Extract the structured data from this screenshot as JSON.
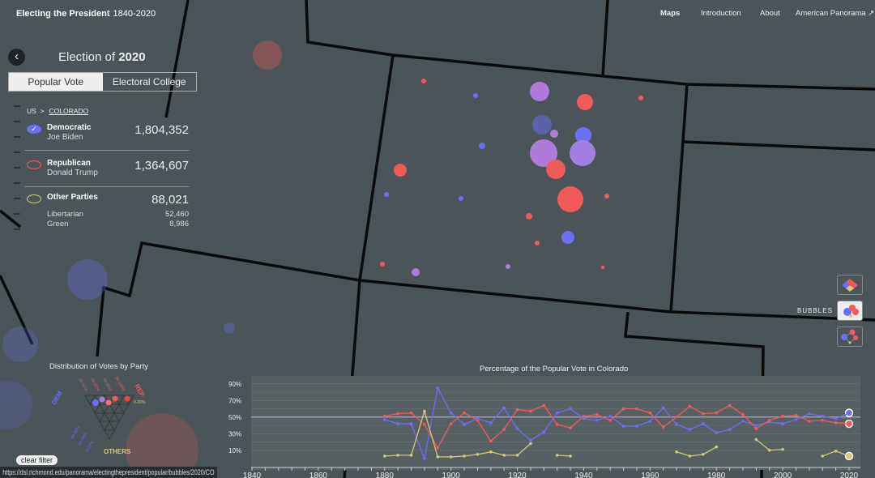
{
  "header": {
    "title": "Electing the President",
    "years": "1840-2020",
    "nav": [
      "Maps",
      "Introduction",
      "About",
      "American Panorama"
    ]
  },
  "panel": {
    "title_prefix": "Election of",
    "year": "2020",
    "tabs": [
      "Popular Vote",
      "Electoral College"
    ],
    "breadcrumb": [
      "US",
      ">",
      "COLORADO"
    ],
    "parties": [
      {
        "name": "Democratic",
        "candidate": "Joe Biden",
        "votes": "1,804,352",
        "color": "#6b6ff5"
      },
      {
        "name": "Republican",
        "candidate": "Donald Trump",
        "votes": "1,364,607",
        "color": "#f05a5a"
      },
      {
        "name": "Other Parties",
        "candidate": "",
        "votes": "88,021",
        "color": "#d6c77a"
      }
    ],
    "others": [
      {
        "name": "Libertarian",
        "votes": "52,460"
      },
      {
        "name": "Green",
        "votes": "8,986"
      }
    ]
  },
  "views": {
    "active_label": "BUBBLES"
  },
  "ternary": {
    "title": "Distribution of Votes by Party",
    "rep": "REP",
    "dem": "DEM",
    "others": "OTHERS",
    "rep_ticks": [
      "0-20%",
      "20-40%",
      "40-60%",
      "60-80%",
      "80-100%"
    ],
    "dem_ticks": [
      "80-100%",
      "60-80%",
      "40-60%",
      "20-40%",
      "0-20%"
    ],
    "oth_ticks": [
      "0-20%",
      "20-40%",
      "40-60%",
      "60-80%",
      "80-100%"
    ],
    "clear": "clear filter"
  },
  "status_url": "https://dsl.richmond.edu/panorama/electingthepresident/popular/bubbles/2020/CO",
  "chart_data": {
    "type": "line",
    "title": "Percentage of the Popular Vote in Colorado",
    "xlim": [
      1840,
      2020
    ],
    "ylim": [
      0,
      100
    ],
    "xticks": [
      1840,
      1860,
      1880,
      1900,
      1920,
      1940,
      1960,
      1980,
      2000,
      2020
    ],
    "yticks": [
      "10%",
      "30%",
      "50%",
      "70%",
      "90%"
    ],
    "x": [
      1880,
      1884,
      1888,
      1892,
      1896,
      1900,
      1904,
      1908,
      1912,
      1916,
      1920,
      1924,
      1928,
      1932,
      1936,
      1940,
      1944,
      1948,
      1952,
      1956,
      1960,
      1964,
      1968,
      1972,
      1976,
      1980,
      1984,
      1988,
      1992,
      1996,
      2000,
      2004,
      2008,
      2012,
      2016,
      2020
    ],
    "series": [
      {
        "name": "Democratic",
        "color": "#6b6ff5",
        "values": [
          47,
          42,
          42,
          0,
          85,
          55,
          41,
          48,
          43,
          61,
          36,
          22,
          32,
          55,
          60,
          48,
          46,
          51,
          39,
          39,
          45,
          61,
          41,
          35,
          42,
          31,
          35,
          45,
          40,
          44,
          42,
          47,
          54,
          51,
          48,
          55
        ]
      },
      {
        "name": "Republican",
        "color": "#f05a5a",
        "values": [
          51,
          54,
          55,
          41,
          13,
          42,
          55,
          46,
          21,
          35,
          59,
          57,
          64,
          41,
          37,
          51,
          53,
          46,
          60,
          60,
          55,
          38,
          50,
          63,
          54,
          55,
          64,
          53,
          36,
          46,
          51,
          52,
          45,
          46,
          43,
          42
        ]
      },
      {
        "name": "Other",
        "color": "#d6c77a",
        "values": [
          3,
          4,
          4,
          57,
          2,
          2,
          3,
          5,
          8,
          4,
          4,
          18,
          null,
          4,
          3,
          null,
          null,
          null,
          null,
          null,
          null,
          null,
          8,
          3,
          5,
          14,
          null,
          null,
          23,
          10,
          11,
          null,
          null,
          3,
          9,
          3
        ]
      }
    ]
  }
}
